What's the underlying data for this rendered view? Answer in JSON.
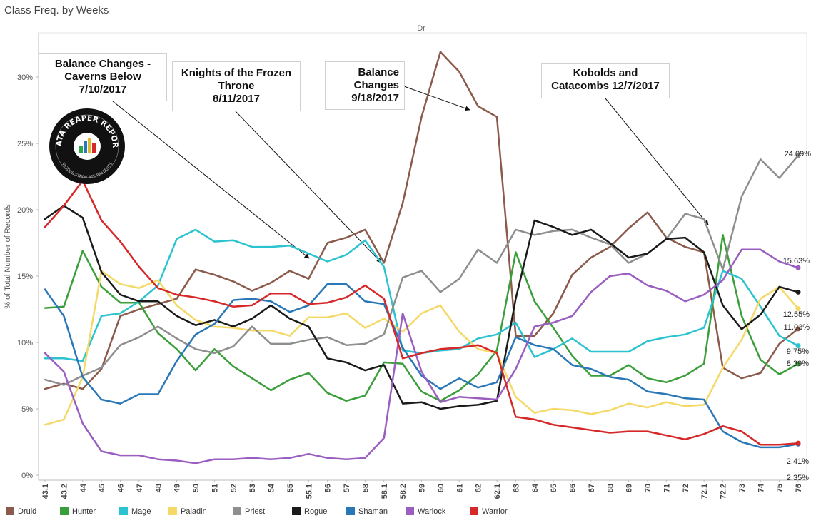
{
  "title": "Class Freq. by Weeks",
  "subtitle": "Dr",
  "annotations": [
    {
      "text": "Balance Changes -\nCaverns Below\n7/10/2017",
      "align": "center"
    },
    {
      "text": "Knights of the Frozen\nThrone\n8/11/2017",
      "align": "center"
    },
    {
      "text": "Balance\nChanges\n9/18/2017",
      "align": "right"
    },
    {
      "text": "Kobolds and\nCatacombs 12/7/2017",
      "align": "center"
    }
  ],
  "logo": {
    "line1": "DATA REAPER REPORT",
    "line2": "VICIOUS SYNDICATE PRESENTS"
  },
  "chart_data": {
    "type": "line",
    "ylabel": "% of Total Number of Records",
    "xlabel": "",
    "ylim": [
      0,
      32
    ],
    "yticks": [
      "0%",
      "5%",
      "10%",
      "15%",
      "20%",
      "25%",
      "30%"
    ],
    "grid": false,
    "legend_position": "bottom",
    "x": [
      "43.1",
      "43.2",
      "44",
      "45",
      "46",
      "47",
      "48",
      "49",
      "50",
      "51",
      "52",
      "53",
      "54",
      "55",
      "55.1",
      "56",
      "57",
      "58",
      "58.1",
      "58.2",
      "59",
      "60",
      "61",
      "62",
      "62.1",
      "63",
      "64",
      "65",
      "66",
      "67",
      "68",
      "69",
      "70",
      "71",
      "72",
      "72.1",
      "72.2",
      "73",
      "74",
      "75",
      "76"
    ],
    "series": [
      {
        "name": "Druid",
        "color": "#8b5a4a",
        "values": [
          6.5,
          6.9,
          6.5,
          8.0,
          12.0,
          12.5,
          12.9,
          13.3,
          15.5,
          15.1,
          14.6,
          13.9,
          14.5,
          15.4,
          14.8,
          17.5,
          17.9,
          18.5,
          16.0,
          20.5,
          27.0,
          31.9,
          30.4,
          27.8,
          27.0,
          10.5,
          10.5,
          12.2,
          15.1,
          16.4,
          17.2,
          18.6,
          19.8,
          17.9,
          17.2,
          16.8,
          8.1,
          7.3,
          7.7,
          9.9,
          11.03
        ]
      },
      {
        "name": "Hunter",
        "color": "#3a9e3a",
        "values": [
          12.6,
          12.7,
          16.9,
          14.2,
          13.0,
          13.0,
          10.7,
          9.5,
          7.9,
          9.5,
          8.2,
          7.3,
          6.4,
          7.2,
          7.7,
          6.2,
          5.6,
          6.0,
          8.5,
          8.4,
          6.3,
          5.6,
          6.4,
          7.6,
          9.4,
          16.8,
          13.1,
          11.1,
          9.0,
          7.5,
          7.5,
          8.3,
          7.3,
          7.0,
          7.5,
          8.4,
          18.1,
          12.0,
          8.7,
          7.6,
          8.39
        ]
      },
      {
        "name": "Mage",
        "color": "#2cc3d0",
        "values": [
          8.8,
          8.8,
          8.6,
          12.0,
          12.2,
          13.1,
          14.3,
          17.8,
          18.5,
          17.6,
          17.7,
          17.2,
          17.2,
          17.3,
          16.7,
          16.1,
          16.6,
          17.7,
          15.7,
          9.4,
          9.2,
          9.4,
          9.5,
          10.3,
          10.6,
          11.5,
          8.9,
          9.5,
          10.3,
          9.3,
          9.3,
          9.3,
          10.1,
          10.4,
          10.6,
          11.1,
          15.4,
          14.8,
          12.7,
          10.5,
          9.75
        ]
      },
      {
        "name": "Paladin",
        "color": "#f5d967",
        "values": [
          3.8,
          4.2,
          7.4,
          15.4,
          14.4,
          14.1,
          14.7,
          12.8,
          11.7,
          11.2,
          11.1,
          10.9,
          10.9,
          10.5,
          11.9,
          11.9,
          12.2,
          11.1,
          11.8,
          10.8,
          12.2,
          12.8,
          10.8,
          9.5,
          9.2,
          5.9,
          4.7,
          5.0,
          4.9,
          4.6,
          4.9,
          5.4,
          5.1,
          5.5,
          5.2,
          5.3,
          8.1,
          10.2,
          13.3,
          14.2,
          12.55
        ]
      },
      {
        "name": "Priest",
        "color": "#8e8e8e",
        "values": [
          7.2,
          6.8,
          7.5,
          8.1,
          9.8,
          10.4,
          11.2,
          10.3,
          9.5,
          9.2,
          9.7,
          11.2,
          9.9,
          9.9,
          10.2,
          10.4,
          9.8,
          9.9,
          10.6,
          14.9,
          15.4,
          13.8,
          14.8,
          17.0,
          16.0,
          18.5,
          18.1,
          18.4,
          18.5,
          17.9,
          17.4,
          16.0,
          16.7,
          17.8,
          19.7,
          19.3,
          15.5,
          21.0,
          23.8,
          22.4,
          24.09
        ]
      },
      {
        "name": "Rogue",
        "color": "#1a1a1a",
        "values": [
          19.3,
          20.3,
          19.4,
          15.3,
          13.6,
          13.1,
          13.1,
          12.0,
          11.3,
          11.7,
          11.2,
          11.8,
          12.8,
          11.8,
          11.2,
          8.8,
          8.5,
          7.9,
          8.3,
          5.4,
          5.5,
          5.0,
          5.2,
          5.3,
          5.6,
          13.3,
          19.2,
          18.7,
          18.1,
          18.5,
          17.5,
          16.4,
          16.7,
          17.8,
          17.9,
          16.8,
          12.8,
          11.0,
          12.1,
          14.2,
          13.8
        ]
      },
      {
        "name": "Shaman",
        "color": "#2a77b8",
        "values": [
          14.0,
          12.0,
          7.4,
          5.7,
          5.4,
          6.1,
          6.1,
          8.6,
          10.6,
          11.4,
          13.2,
          13.3,
          13.1,
          12.3,
          12.8,
          14.4,
          14.4,
          13.1,
          12.9,
          9.6,
          7.5,
          6.5,
          7.3,
          6.6,
          7.0,
          10.4,
          9.8,
          9.5,
          8.3,
          8.0,
          7.4,
          7.2,
          6.3,
          6.1,
          5.8,
          5.7,
          3.3,
          2.5,
          2.1,
          2.1,
          2.35
        ]
      },
      {
        "name": "Warlock",
        "color": "#9a5dc0",
        "values": [
          9.2,
          7.8,
          3.9,
          1.8,
          1.5,
          1.5,
          1.2,
          1.1,
          0.9,
          1.2,
          1.2,
          1.3,
          1.2,
          1.3,
          1.6,
          1.3,
          1.2,
          1.3,
          2.8,
          12.2,
          7.8,
          5.5,
          5.9,
          5.8,
          5.7,
          8.0,
          11.2,
          11.5,
          12.0,
          13.8,
          15.0,
          15.2,
          14.3,
          13.9,
          13.1,
          13.6,
          14.7,
          17.0,
          17.0,
          16.1,
          15.63
        ]
      },
      {
        "name": "Warrior",
        "color": "#d62828",
        "values": [
          18.7,
          20.3,
          22.2,
          19.2,
          17.6,
          15.7,
          14.1,
          13.6,
          13.4,
          13.1,
          12.7,
          12.8,
          13.7,
          13.7,
          12.9,
          13.0,
          13.4,
          14.3,
          13.3,
          8.8,
          9.2,
          9.5,
          9.6,
          9.8,
          9.2,
          4.4,
          4.2,
          3.8,
          3.6,
          3.4,
          3.2,
          3.3,
          3.3,
          3.0,
          2.7,
          3.1,
          3.7,
          3.3,
          2.3,
          2.3,
          2.41
        ]
      }
    ],
    "end_labels": [
      "24.09%",
      "15.63%",
      "12.55%",
      "11.03%",
      "9.75%",
      "8.39%",
      "2.41%",
      "2.35%"
    ]
  }
}
